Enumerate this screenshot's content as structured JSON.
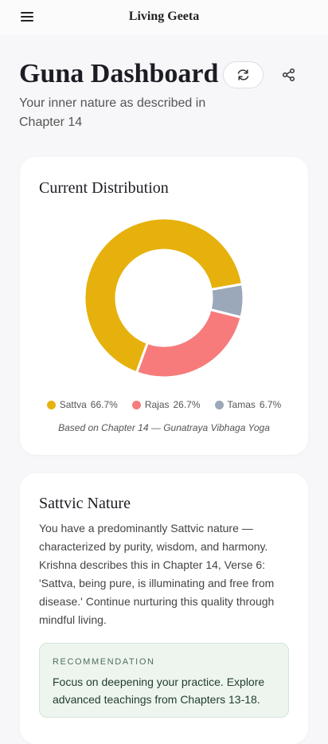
{
  "header": {
    "title": "Living Geeta"
  },
  "page": {
    "title": "Guna Dashboard",
    "subtitle": "Your inner nature as described in Chapter 14"
  },
  "chart_data": {
    "type": "pie",
    "title": "Current Distribution",
    "categories": [
      "Sattva",
      "Rajas",
      "Tamas"
    ],
    "values": [
      66.7,
      26.7,
      6.7
    ],
    "value_labels": [
      "66.7%",
      "26.7%",
      "6.7%"
    ],
    "colors": [
      "#e6b10c",
      "#f77b7b",
      "#9aa8ba"
    ],
    "note": "Based on Chapter 14 — Gunatraya Vibhaga Yoga"
  },
  "nature": {
    "title": "Sattvic Nature",
    "body": "You have a predominantly Sattvic nature — characterized by purity, wisdom, and harmony. Krishna describes this in Chapter 14, Verse 6: 'Sattva, being pure, is illuminating and free from disease.' Continue nurturing this quality through mindful living."
  },
  "recommendation": {
    "label": "RECOMMENDATION",
    "text": "Focus on deepening your practice. Explore advanced teachings from Chapters 13-18."
  }
}
